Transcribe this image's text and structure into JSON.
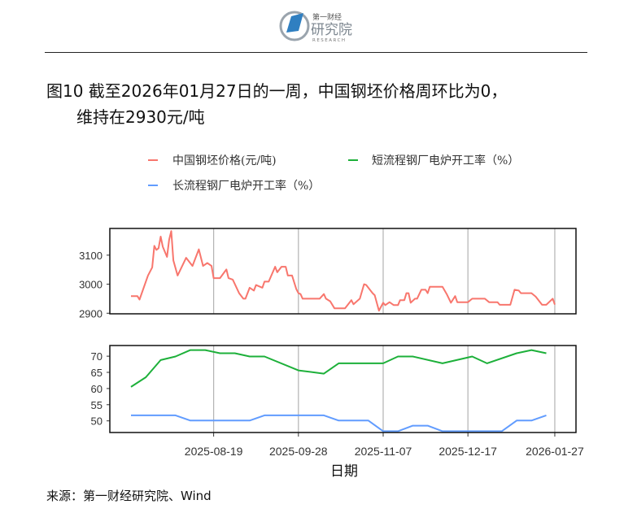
{
  "logo": {
    "text_cn_small": "第一财经",
    "text_cn": "研究院",
    "text_en": "RESEARCH",
    "color": "#2f7fc1"
  },
  "title": {
    "line1": "图10  截至2026年01月27日的一周，中国钢坯价格周环比为0，",
    "line2": "维持在2930元/吨"
  },
  "source": "来源：第一财经研究院、Wind",
  "chart_data": {
    "type": "line",
    "xlabel": "日期",
    "x_ticks": [
      "2025-08-19",
      "2025-09-28",
      "2025-11-07",
      "2025-12-17",
      "2026-01-27"
    ],
    "xlim": [
      "2025-07-01",
      "2026-02-06"
    ],
    "grid": "vertical lines at x ticks",
    "legend": {
      "placement": "top",
      "entries": [
        {
          "label": "中国钢坯价格(元/吨)",
          "color": "#F8766D"
        },
        {
          "label": "短流程钢厂电炉开工率（%）",
          "color": "#1DB03A"
        },
        {
          "label": "长流程钢厂电炉开工率（%）",
          "color": "#619CFF"
        }
      ]
    },
    "panels": [
      {
        "ylim": [
          2898,
          3192
        ],
        "y_ticks": [
          2900,
          3000,
          3100
        ],
        "series": [
          {
            "name": "中国钢坯价格(元/吨)",
            "color": "#F8766D",
            "points": [
              [
                "2025-07-11",
                2959
              ],
              [
                "2025-07-14",
                2959
              ],
              [
                "2025-07-15",
                2947
              ],
              [
                "2025-07-19",
                3030
              ],
              [
                "2025-07-21",
                3058
              ],
              [
                "2025-07-22",
                3132
              ],
              [
                "2025-07-23",
                3118
              ],
              [
                "2025-07-24",
                3124
              ],
              [
                "2025-07-25",
                3164
              ],
              [
                "2025-07-26",
                3129
              ],
              [
                "2025-07-28",
                3094
              ],
              [
                "2025-07-29",
                3153
              ],
              [
                "2025-07-30",
                3183
              ],
              [
                "2025-07-31",
                3082
              ],
              [
                "2025-08-02",
                3030
              ],
              [
                "2025-08-06",
                3091
              ],
              [
                "2025-08-09",
                3063
              ],
              [
                "2025-08-12",
                3120
              ],
              [
                "2025-08-14",
                3063
              ],
              [
                "2025-08-16",
                3073
              ],
              [
                "2025-08-18",
                3063
              ],
              [
                "2025-08-19",
                3021
              ],
              [
                "2025-08-22",
                3021
              ],
              [
                "2025-08-25",
                3051
              ],
              [
                "2025-08-26",
                3021
              ],
              [
                "2025-08-28",
                3016
              ],
              [
                "2025-08-31",
                2969
              ],
              [
                "2025-09-02",
                2950
              ],
              [
                "2025-09-03",
                2950
              ],
              [
                "2025-09-05",
                2988
              ],
              [
                "2025-09-07",
                2978
              ],
              [
                "2025-09-08",
                2997
              ],
              [
                "2025-09-11",
                2988
              ],
              [
                "2025-09-12",
                3009
              ],
              [
                "2025-09-14",
                3009
              ],
              [
                "2025-09-17",
                3060
              ],
              [
                "2025-09-18",
                3041
              ],
              [
                "2025-09-20",
                3060
              ],
              [
                "2025-09-22",
                3060
              ],
              [
                "2025-09-23",
                3030
              ],
              [
                "2025-09-25",
                3030
              ],
              [
                "2025-09-27",
                2983
              ],
              [
                "2025-09-28",
                2969
              ],
              [
                "2025-09-29",
                2966
              ],
              [
                "2025-09-30",
                2950
              ],
              [
                "2025-10-08",
                2950
              ],
              [
                "2025-10-10",
                2966
              ],
              [
                "2025-10-11",
                2950
              ],
              [
                "2025-10-13",
                2941
              ],
              [
                "2025-10-15",
                2917
              ],
              [
                "2025-10-20",
                2917
              ],
              [
                "2025-10-23",
                2945
              ],
              [
                "2025-10-24",
                2931
              ],
              [
                "2025-10-27",
                2950
              ],
              [
                "2025-10-29",
                3000
              ],
              [
                "2025-10-30",
                2997
              ],
              [
                "2025-11-02",
                2969
              ],
              [
                "2025-11-03",
                2962
              ],
              [
                "2025-11-05",
                2909
              ],
              [
                "2025-11-07",
                2936
              ],
              [
                "2025-11-08",
                2928
              ],
              [
                "2025-11-10",
                2938
              ],
              [
                "2025-11-12",
                2928
              ],
              [
                "2025-11-14",
                2928
              ],
              [
                "2025-11-15",
                2945
              ],
              [
                "2025-11-17",
                2945
              ],
              [
                "2025-11-18",
                2969
              ],
              [
                "2025-11-19",
                2969
              ],
              [
                "2025-11-20",
                2936
              ],
              [
                "2025-11-22",
                2950
              ],
              [
                "2025-11-23",
                2950
              ],
              [
                "2025-11-25",
                2981
              ],
              [
                "2025-11-27",
                2981
              ],
              [
                "2025-11-28",
                2969
              ],
              [
                "2025-11-29",
                2991
              ],
              [
                "2025-12-05",
                2991
              ],
              [
                "2025-12-07",
                2966
              ],
              [
                "2025-12-09",
                2936
              ],
              [
                "2025-12-11",
                2959
              ],
              [
                "2025-12-12",
                2938
              ],
              [
                "2025-12-17",
                2938
              ],
              [
                "2025-12-19",
                2950
              ],
              [
                "2025-12-25",
                2950
              ],
              [
                "2025-12-27",
                2938
              ],
              [
                "2025-12-31",
                2938
              ],
              [
                "2026-01-01",
                2929
              ],
              [
                "2026-01-06",
                2929
              ],
              [
                "2026-01-08",
                2981
              ],
              [
                "2026-01-10",
                2978
              ],
              [
                "2026-01-11",
                2969
              ],
              [
                "2026-01-16",
                2969
              ],
              [
                "2026-01-18",
                2957
              ],
              [
                "2026-01-21",
                2929
              ],
              [
                "2026-01-23",
                2929
              ],
              [
                "2026-01-26",
                2950
              ],
              [
                "2026-01-27",
                2930
              ]
            ]
          }
        ]
      },
      {
        "ylim": [
          46.4,
          73.3
        ],
        "y_ticks": [
          50,
          55,
          60,
          65,
          70
        ],
        "series": [
          {
            "name": "短流程钢厂电炉开工率（%）",
            "color": "#1DB03A",
            "points": [
              [
                "2025-07-11",
                60.5
              ],
              [
                "2025-07-18",
                63.5
              ],
              [
                "2025-07-25",
                68.8
              ],
              [
                "2025-08-01",
                69.9
              ],
              [
                "2025-08-08",
                71.9
              ],
              [
                "2025-08-15",
                71.9
              ],
              [
                "2025-08-22",
                70.9
              ],
              [
                "2025-08-29",
                70.9
              ],
              [
                "2025-09-05",
                69.9
              ],
              [
                "2025-09-12",
                69.9
              ],
              [
                "2025-09-28",
                65.6
              ],
              [
                "2025-10-10",
                64.6
              ],
              [
                "2025-10-17",
                67.8
              ],
              [
                "2025-11-07",
                67.8
              ],
              [
                "2025-11-14",
                69.9
              ],
              [
                "2025-11-21",
                69.9
              ],
              [
                "2025-12-05",
                67.8
              ],
              [
                "2025-12-19",
                69.9
              ],
              [
                "2025-12-26",
                67.8
              ],
              [
                "2026-01-09",
                70.9
              ],
              [
                "2026-01-16",
                71.9
              ],
              [
                "2026-01-23",
                70.9
              ]
            ]
          },
          {
            "name": "长流程钢厂电炉开工率（%）",
            "color": "#619CFF",
            "points": [
              [
                "2025-07-11",
                51.7
              ],
              [
                "2025-08-01",
                51.7
              ],
              [
                "2025-08-08",
                50.1
              ],
              [
                "2025-09-05",
                50.1
              ],
              [
                "2025-09-12",
                51.7
              ],
              [
                "2025-10-10",
                51.7
              ],
              [
                "2025-10-17",
                50.1
              ],
              [
                "2025-10-31",
                50.1
              ],
              [
                "2025-11-07",
                46.8
              ],
              [
                "2025-11-14",
                46.8
              ],
              [
                "2025-11-21",
                48.5
              ],
              [
                "2025-11-28",
                48.5
              ],
              [
                "2025-12-05",
                46.8
              ],
              [
                "2026-01-02",
                46.8
              ],
              [
                "2026-01-09",
                50.1
              ],
              [
                "2026-01-16",
                50.1
              ],
              [
                "2026-01-23",
                51.7
              ]
            ]
          }
        ]
      }
    ]
  }
}
